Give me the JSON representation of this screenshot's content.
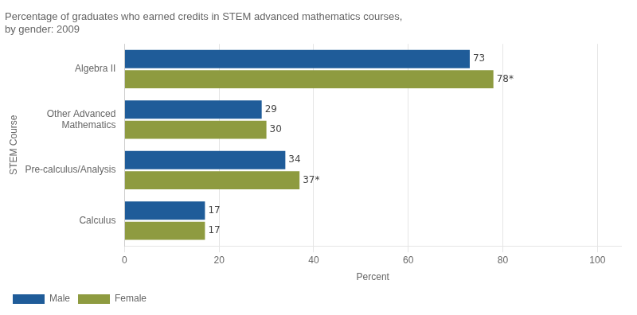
{
  "chart_data": {
    "type": "bar",
    "orientation": "horizontal",
    "title": "Percentage of graduates who earned credits in STEM advanced mathematics courses,\nby gender: 2009",
    "xlabel": "Percent",
    "ylabel": "STEM Course",
    "categories": [
      "Algebra II",
      "Other Advanced\nMathematics",
      "Pre-calculus/Analysis",
      "Calculus"
    ],
    "series": [
      {
        "name": "Male",
        "color": "#1F5C99",
        "values": [
          73,
          29,
          34,
          17
        ]
      },
      {
        "name": "Female",
        "color": "#8E9B40",
        "values": [
          78,
          30,
          37,
          17
        ],
        "value_labels": [
          "78*",
          "30",
          "37*",
          "17"
        ]
      }
    ],
    "xlim": [
      0,
      105
    ],
    "xticks": [
      0,
      20,
      40,
      60,
      80,
      100
    ],
    "grid": true,
    "legend": "lower left",
    "data_labels": true
  }
}
